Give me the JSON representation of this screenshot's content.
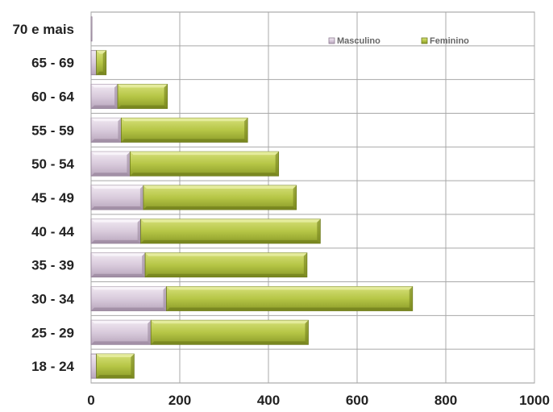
{
  "chart_data": {
    "type": "bar",
    "orientation": "horizontal",
    "stacked": true,
    "categories": [
      "18 - 24",
      "25 - 29",
      "30 - 34",
      "35 - 39",
      "40 - 44",
      "45 - 49",
      "50 - 54",
      "55 - 59",
      "60 - 64",
      "65 - 69",
      "70 e mais"
    ],
    "series": [
      {
        "name": "Masculino",
        "color": "#ddd0e0",
        "values": [
          12,
          135,
          170,
          122,
          112,
          118,
          88,
          68,
          60,
          12,
          2
        ]
      },
      {
        "name": "Feminino",
        "color": "#b8c848",
        "values": [
          85,
          355,
          555,
          365,
          405,
          345,
          335,
          285,
          112,
          22,
          0
        ]
      }
    ],
    "xlim": [
      0,
      1000
    ],
    "xticks": [
      0,
      200,
      400,
      600,
      800,
      1000
    ],
    "grid": true,
    "legend_position": "top-right",
    "title": "",
    "xlabel": "",
    "ylabel": ""
  }
}
